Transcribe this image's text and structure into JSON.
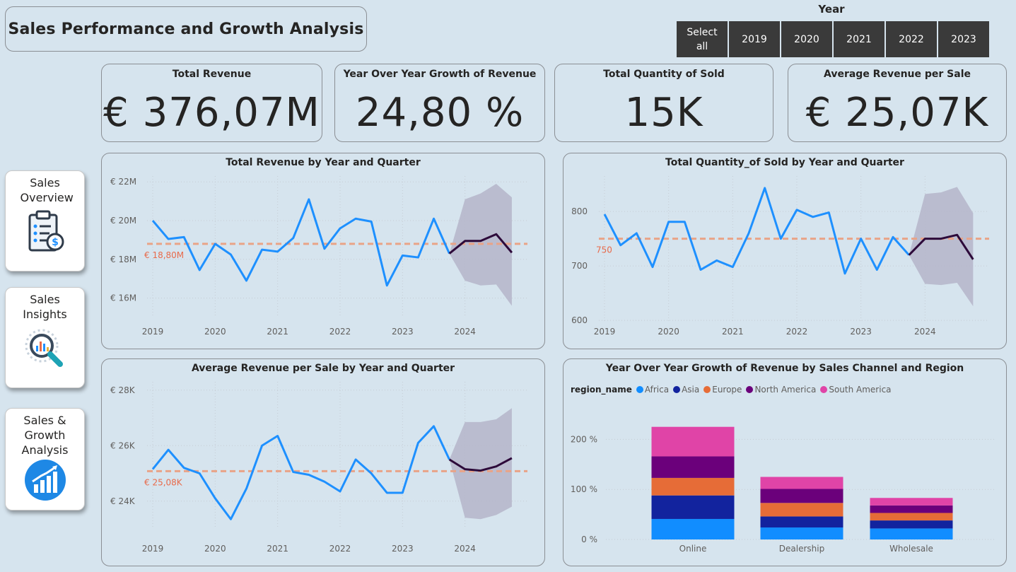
{
  "header": {
    "title": "Sales Performance and Growth Analysis"
  },
  "year_slicer": {
    "title": "Year",
    "options": [
      "Select all",
      "2019",
      "2020",
      "2021",
      "2022",
      "2023"
    ]
  },
  "nav": {
    "items": [
      {
        "label": "Sales Overview",
        "icon": "clipboard-icon"
      },
      {
        "label": "Sales Insights",
        "icon": "magnifier-chart-icon"
      },
      {
        "label": "Sales & Growth Analysis",
        "icon": "growth-chart-icon"
      }
    ]
  },
  "kpis": [
    {
      "title": "Total Revenue",
      "value": "€ 376,07M"
    },
    {
      "title": "Year Over Year Growth of Revenue",
      "value": "24,80 %"
    },
    {
      "title": "Total Quantity of Sold",
      "value": "15K"
    },
    {
      "title": "Average Revenue per Sale",
      "value": "€ 25,07K"
    }
  ],
  "colors": {
    "line": "#1e90ff",
    "forecast": "#2d0a3a",
    "band": "#b5b5c9",
    "average": "#e9a387",
    "average_label": "#e86a4a"
  },
  "chart_data": [
    {
      "type": "line",
      "title": "Total Revenue by Year and Quarter",
      "x_ticks": [
        "2019",
        "2020",
        "2021",
        "2022",
        "2023",
        "2024"
      ],
      "y_ticks": [
        "€ 16M",
        "€ 18M",
        "€ 20M",
        "€ 22M"
      ],
      "ylim": [
        15,
        22.3
      ],
      "values": [
        20.0,
        19.05,
        19.15,
        17.45,
        18.8,
        18.25,
        16.9,
        18.5,
        18.4,
        19.1,
        21.1,
        18.55,
        19.6,
        20.1,
        19.95,
        16.65,
        18.2,
        18.1,
        20.1,
        18.3
      ],
      "forecast": [
        18.3,
        18.95,
        18.95,
        19.3,
        18.35
      ],
      "forecast_upper": [
        18.3,
        21.1,
        21.4,
        21.9,
        21.2
      ],
      "forecast_lower": [
        18.3,
        16.9,
        16.65,
        16.7,
        15.6
      ],
      "average": 18.8,
      "average_label": "€ 18,80M"
    },
    {
      "type": "line",
      "title": "Total Quantity_of Sold by Year and Quarter",
      "x_ticks": [
        "2019",
        "2020",
        "2021",
        "2022",
        "2023",
        "2024"
      ],
      "y_ticks": [
        "600",
        "700",
        "800"
      ],
      "ylim": [
        595,
        865
      ],
      "values": [
        795,
        738,
        760,
        698,
        781,
        781,
        693,
        710,
        698,
        760,
        843,
        750,
        803,
        790,
        798,
        686,
        750,
        693,
        753,
        720
      ],
      "forecast": [
        720,
        750,
        750,
        757,
        712
      ],
      "forecast_upper": [
        720,
        832,
        835,
        845,
        797
      ],
      "forecast_lower": [
        720,
        667,
        665,
        669,
        626
      ],
      "average": 750,
      "average_label": "750"
    },
    {
      "type": "line",
      "title": "Average Revenue per Sale by Year and Quarter",
      "x_ticks": [
        "2019",
        "2020",
        "2021",
        "2022",
        "2023",
        "2024"
      ],
      "y_ticks": [
        "€ 24K",
        "€ 26K",
        "€ 28K"
      ],
      "ylim": [
        23,
        28.3
      ],
      "values": [
        25.15,
        25.85,
        25.2,
        25.0,
        24.1,
        23.35,
        24.45,
        26.0,
        26.35,
        25.05,
        24.95,
        24.7,
        24.35,
        25.5,
        25.0,
        24.3,
        24.3,
        26.1,
        26.7,
        25.5
      ],
      "forecast": [
        25.5,
        25.15,
        25.1,
        25.25,
        25.55
      ],
      "forecast_upper": [
        25.5,
        26.85,
        26.85,
        26.95,
        27.35
      ],
      "forecast_lower": [
        25.5,
        23.4,
        23.35,
        23.5,
        23.8
      ],
      "average": 25.08,
      "average_label": "€ 25,08K"
    },
    {
      "type": "bar",
      "title": "Year Over Year Growth of Revenue by Sales Channel and Region",
      "legend_title": "region_name",
      "categories": [
        "Online",
        "Dealership",
        "Wholesale"
      ],
      "y_ticks": [
        "0 %",
        "100 %",
        "200 %"
      ],
      "ylim": [
        0,
        250
      ],
      "series": [
        {
          "name": "Africa",
          "color": "#118dff",
          "values": [
            41,
            24,
            22
          ]
        },
        {
          "name": "Asia",
          "color": "#12239e",
          "values": [
            47,
            22,
            16
          ]
        },
        {
          "name": "Europe",
          "color": "#e66c37",
          "values": [
            35,
            27,
            15
          ]
        },
        {
          "name": "North America",
          "color": "#6b007b",
          "values": [
            43,
            28,
            15
          ]
        },
        {
          "name": "South America",
          "color": "#e044a7",
          "values": [
            59,
            24,
            15
          ]
        }
      ]
    }
  ]
}
